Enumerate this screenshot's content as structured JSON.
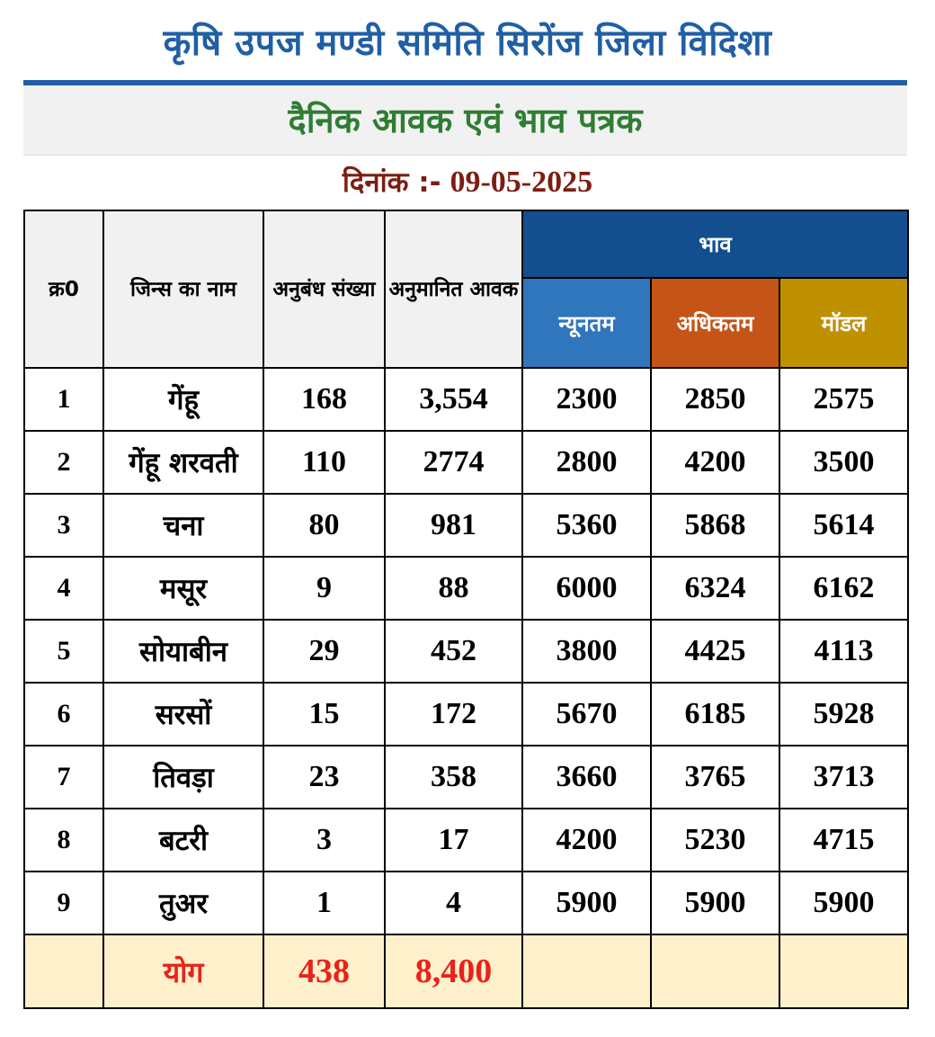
{
  "header": {
    "title": "कृषि उपज मण्डी समिति सिरोंज जिला विदिशा",
    "subtitle": "दैनिक आवक एवं भाव पत्रक",
    "date_label": "दिनांक :-",
    "date_value": "09-05-2025"
  },
  "table": {
    "headers": {
      "sno": "क्र0",
      "crop": "जिन्स का नाम",
      "contracts": "अनुबंध संख्या",
      "arrival": "अनुमानित आवक",
      "price": "भाव",
      "min": "न्यूनतम",
      "max": "अधिकतम",
      "modal": "मॉडल"
    },
    "rows": [
      {
        "sno": "1",
        "crop": "गेंहू",
        "contracts": "168",
        "arrival": "3,554",
        "min": "2300",
        "max": "2850",
        "modal": "2575"
      },
      {
        "sno": "2",
        "crop": "गेंहू शरवती",
        "contracts": "110",
        "arrival": "2774",
        "min": "2800",
        "max": "4200",
        "modal": "3500"
      },
      {
        "sno": "3",
        "crop": "चना",
        "contracts": "80",
        "arrival": "981",
        "min": "5360",
        "max": "5868",
        "modal": "5614"
      },
      {
        "sno": "4",
        "crop": "मसूर",
        "contracts": "9",
        "arrival": "88",
        "min": "6000",
        "max": "6324",
        "modal": "6162"
      },
      {
        "sno": "5",
        "crop": "सोयाबीन",
        "contracts": "29",
        "arrival": "452",
        "min": "3800",
        "max": "4425",
        "modal": "4113"
      },
      {
        "sno": "6",
        "crop": "सरसों",
        "contracts": "15",
        "arrival": "172",
        "min": "5670",
        "max": "6185",
        "modal": "5928"
      },
      {
        "sno": "7",
        "crop": "तिवड़ा",
        "contracts": "23",
        "arrival": "358",
        "min": "3660",
        "max": "3765",
        "modal": "3713"
      },
      {
        "sno": "8",
        "crop": "बटरी",
        "contracts": "3",
        "arrival": "17",
        "min": "4200",
        "max": "5230",
        "modal": "4715"
      },
      {
        "sno": "9",
        "crop": "तुअर",
        "contracts": "1",
        "arrival": "4",
        "min": "5900",
        "max": "5900",
        "modal": "5900"
      }
    ],
    "total": {
      "label": "योग",
      "contracts": "438",
      "arrival": "8,400"
    }
  },
  "colors": {
    "title": "#1f5fa5",
    "subtitle": "#2e7d32",
    "date": "#7b1e12",
    "bhav_header": "#134f8e",
    "min_header": "#2f76bd",
    "max_header": "#c55516",
    "modal_header": "#bf9000",
    "total_row_bg": "#fff0cc",
    "total_text": "#e8231a"
  }
}
